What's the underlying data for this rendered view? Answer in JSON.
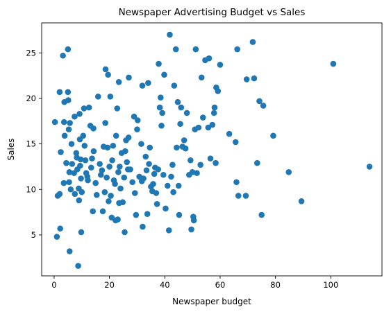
{
  "chart_data": {
    "type": "scatter",
    "title": "Newspaper Advertising Budget vs Sales",
    "xlabel": "Newspaper budget",
    "ylabel": "Sales",
    "xlim": [
      -4.5,
      118.5
    ],
    "ylim": [
      0.5,
      28.3
    ],
    "xticks": [
      0,
      20,
      40,
      60,
      80,
      100
    ],
    "yticks": [
      5,
      10,
      15,
      20,
      25
    ],
    "grid": false,
    "marker_color": "#1f77b4",
    "points": [
      [
        0.3,
        17.4
      ],
      [
        1.0,
        4.8
      ],
      [
        1.3,
        9.3
      ],
      [
        2.0,
        20.7
      ],
      [
        2.0,
        9.5
      ],
      [
        2.2,
        5.7
      ],
      [
        2.4,
        14.1
      ],
      [
        3.2,
        24.7
      ],
      [
        3.5,
        10.7
      ],
      [
        3.6,
        17.4
      ],
      [
        3.7,
        19.6
      ],
      [
        3.8,
        15.9
      ],
      [
        4.4,
        12.9
      ],
      [
        5.0,
        25.4
      ],
      [
        5.0,
        20.7
      ],
      [
        5.1,
        19.8
      ],
      [
        5.3,
        16.6
      ],
      [
        5.4,
        10.8
      ],
      [
        5.5,
        11.9
      ],
      [
        5.6,
        3.2
      ],
      [
        5.7,
        17.3
      ],
      [
        6.0,
        10.0
      ],
      [
        6.3,
        15.0
      ],
      [
        6.5,
        12.8
      ],
      [
        7.2,
        11.8
      ],
      [
        7.4,
        18.0
      ],
      [
        7.5,
        9.5
      ],
      [
        8.0,
        14.0
      ],
      [
        8.2,
        13.5
      ],
      [
        8.4,
        12.2
      ],
      [
        8.7,
        1.6
      ],
      [
        8.9,
        10.1
      ],
      [
        9.0,
        8.8
      ],
      [
        9.2,
        18.3
      ],
      [
        9.3,
        15.5
      ],
      [
        9.4,
        12.6
      ],
      [
        9.6,
        13.3
      ],
      [
        9.7,
        11.2
      ],
      [
        9.8,
        5.3
      ],
      [
        10.0,
        9.7
      ],
      [
        10.5,
        15.9
      ],
      [
        10.8,
        18.9
      ],
      [
        11.0,
        14.8
      ],
      [
        11.3,
        13.2
      ],
      [
        11.6,
        11.8
      ],
      [
        12.0,
        11.4
      ],
      [
        12.2,
        11.0
      ],
      [
        12.6,
        19.0
      ],
      [
        13.1,
        17.0
      ],
      [
        13.4,
        12.4
      ],
      [
        13.7,
        13.4
      ],
      [
        14.0,
        7.6
      ],
      [
        14.2,
        16.7
      ],
      [
        14.3,
        14.2
      ],
      [
        15.0,
        10.7
      ],
      [
        15.4,
        9.4
      ],
      [
        15.9,
        20.2
      ],
      [
        16.5,
        12.8
      ],
      [
        16.9,
        11.6
      ],
      [
        17.3,
        12.1
      ],
      [
        17.6,
        7.6
      ],
      [
        17.9,
        14.7
      ],
      [
        18.3,
        9.7
      ],
      [
        18.5,
        17.3
      ],
      [
        18.6,
        23.2
      ],
      [
        19.0,
        11.3
      ],
      [
        19.3,
        14.6
      ],
      [
        19.5,
        22.6
      ],
      [
        19.7,
        8.7
      ],
      [
        20.0,
        12.5
      ],
      [
        20.3,
        20.2
      ],
      [
        20.5,
        9.3
      ],
      [
        20.8,
        6.9
      ],
      [
        21.0,
        13.2
      ],
      [
        21.3,
        14.8
      ],
      [
        21.6,
        11.0
      ],
      [
        22.0,
        10.6
      ],
      [
        22.2,
        6.6
      ],
      [
        22.4,
        15.9
      ],
      [
        22.8,
        18.9
      ],
      [
        23.0,
        6.7
      ],
      [
        23.2,
        11.9
      ],
      [
        23.4,
        21.8
      ],
      [
        23.5,
        8.5
      ],
      [
        23.7,
        12.5
      ],
      [
        24.0,
        10.1
      ],
      [
        24.4,
        14.0
      ],
      [
        24.8,
        8.6
      ],
      [
        25.3,
        11.3
      ],
      [
        25.5,
        5.3
      ],
      [
        25.7,
        14.2
      ],
      [
        26.0,
        15.4
      ],
      [
        26.3,
        13.0
      ],
      [
        26.7,
        12.2
      ],
      [
        26.9,
        15.7
      ],
      [
        27.0,
        22.3
      ],
      [
        27.5,
        12.2
      ],
      [
        28.3,
        10.8
      ],
      [
        28.9,
        18.0
      ],
      [
        29.2,
        9.6
      ],
      [
        29.6,
        7.2
      ],
      [
        30.0,
        16.6
      ],
      [
        30.2,
        17.6
      ],
      [
        30.8,
        11.4
      ],
      [
        31.5,
        15.0
      ],
      [
        31.7,
        10.9
      ],
      [
        31.9,
        21.4
      ],
      [
        32.0,
        5.9
      ],
      [
        32.3,
        11.2
      ],
      [
        33.1,
        13.6
      ],
      [
        33.4,
        12.1
      ],
      [
        33.7,
        7.3
      ],
      [
        34.0,
        21.7
      ],
      [
        34.3,
        12.8
      ],
      [
        34.6,
        14.6
      ],
      [
        35.0,
        10.3
      ],
      [
        35.5,
        9.8
      ],
      [
        35.8,
        10.6
      ],
      [
        36.2,
        11.7
      ],
      [
        36.5,
        12.4
      ],
      [
        36.9,
        9.6
      ],
      [
        37.2,
        8.4
      ],
      [
        37.6,
        12.2
      ],
      [
        37.8,
        23.8
      ],
      [
        38.2,
        19.0
      ],
      [
        38.5,
        20.1
      ],
      [
        38.8,
        17.0
      ],
      [
        39.1,
        18.4
      ],
      [
        39.5,
        11.6
      ],
      [
        39.8,
        22.6
      ],
      [
        40.3,
        7.9
      ],
      [
        41.0,
        10.4
      ],
      [
        41.5,
        5.5
      ],
      [
        41.8,
        27.0
      ],
      [
        42.3,
        11.4
      ],
      [
        42.8,
        12.7
      ],
      [
        43.1,
        9.7
      ],
      [
        43.4,
        21.4
      ],
      [
        44.0,
        25.4
      ],
      [
        44.3,
        14.6
      ],
      [
        44.7,
        19.6
      ],
      [
        45.0,
        10.4
      ],
      [
        45.2,
        7.2
      ],
      [
        45.6,
        17.2
      ],
      [
        45.9,
        19.0
      ],
      [
        46.4,
        14.7
      ],
      [
        47.0,
        15.4
      ],
      [
        47.5,
        14.5
      ],
      [
        48.0,
        18.4
      ],
      [
        48.8,
        11.6
      ],
      [
        49.3,
        13.2
      ],
      [
        49.6,
        5.6
      ],
      [
        50.0,
        11.9
      ],
      [
        50.3,
        7.0
      ],
      [
        50.5,
        6.6
      ],
      [
        50.9,
        16.6
      ],
      [
        51.2,
        25.4
      ],
      [
        51.6,
        11.8
      ],
      [
        52.2,
        16.8
      ],
      [
        52.9,
        12.7
      ],
      [
        53.3,
        22.3
      ],
      [
        53.8,
        17.9
      ],
      [
        54.6,
        24.2
      ],
      [
        55.7,
        16.8
      ],
      [
        56.0,
        24.4
      ],
      [
        56.5,
        13.4
      ],
      [
        57.2,
        17.1
      ],
      [
        57.8,
        18.4
      ],
      [
        58.0,
        19.0
      ],
      [
        58.4,
        12.9
      ],
      [
        58.6,
        21.2
      ],
      [
        59.2,
        20.8
      ],
      [
        60.0,
        23.7
      ],
      [
        63.3,
        16.1
      ],
      [
        65.6,
        15.2
      ],
      [
        65.9,
        10.8
      ],
      [
        66.2,
        25.4
      ],
      [
        66.6,
        9.3
      ],
      [
        69.3,
        9.3
      ],
      [
        69.6,
        22.1
      ],
      [
        71.8,
        26.2
      ],
      [
        72.3,
        22.2
      ],
      [
        73.4,
        12.9
      ],
      [
        74.2,
        19.7
      ],
      [
        75.0,
        7.2
      ],
      [
        75.6,
        19.2
      ],
      [
        79.2,
        15.9
      ],
      [
        84.8,
        11.9
      ],
      [
        89.4,
        8.7
      ],
      [
        100.9,
        23.8
      ],
      [
        114.0,
        12.5
      ]
    ]
  }
}
